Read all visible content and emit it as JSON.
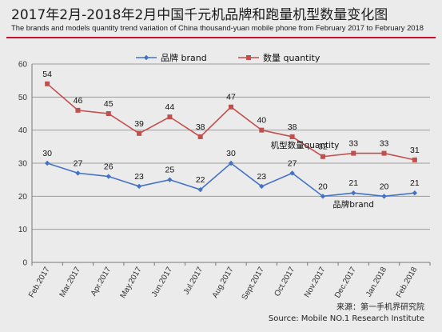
{
  "header": {
    "title": "2017年2月-2018年2月中国千元机品牌和跑量机型数量变化图",
    "subtitle": "The brands and models quantity trend variation of China thousand-yuan mobile phone from February 2017 to February 2018"
  },
  "chart_data": {
    "type": "line",
    "categories": [
      "Feb.2017",
      "Mar.2017",
      "Apr.2017",
      "May.2017",
      "Jun.2017",
      "Jul.2017",
      "Aug.2017",
      "Sept.2017",
      "Oct.2017",
      "Nov.2017",
      "Dec.2017",
      "Jan.2018",
      "Feb.2018"
    ],
    "series": [
      {
        "name": "品牌 brand",
        "color": "#4472c4",
        "marker": "diamond",
        "values": [
          30,
          27,
          26,
          23,
          25,
          22,
          30,
          23,
          27,
          20,
          21,
          20,
          21
        ]
      },
      {
        "name": "数量 quantity",
        "color": "#c0504d",
        "marker": "square",
        "values": [
          54,
          46,
          45,
          39,
          44,
          38,
          47,
          40,
          38,
          32,
          33,
          33,
          31
        ]
      }
    ],
    "ylim": [
      0,
      60
    ],
    "yticks": [
      0,
      10,
      20,
      30,
      40,
      50,
      60
    ],
    "grid": true,
    "legend": "top",
    "annotations": [
      {
        "text": "机型数量quantity",
        "near_series": 1,
        "near_index": 8
      },
      {
        "text": "品牌brand",
        "near_series": 0,
        "near_index": 10
      }
    ]
  },
  "footer": {
    "source_cn": "来源：第一手机界研究院",
    "source_en": "Source: Mobile NO.1 Research Institute"
  }
}
